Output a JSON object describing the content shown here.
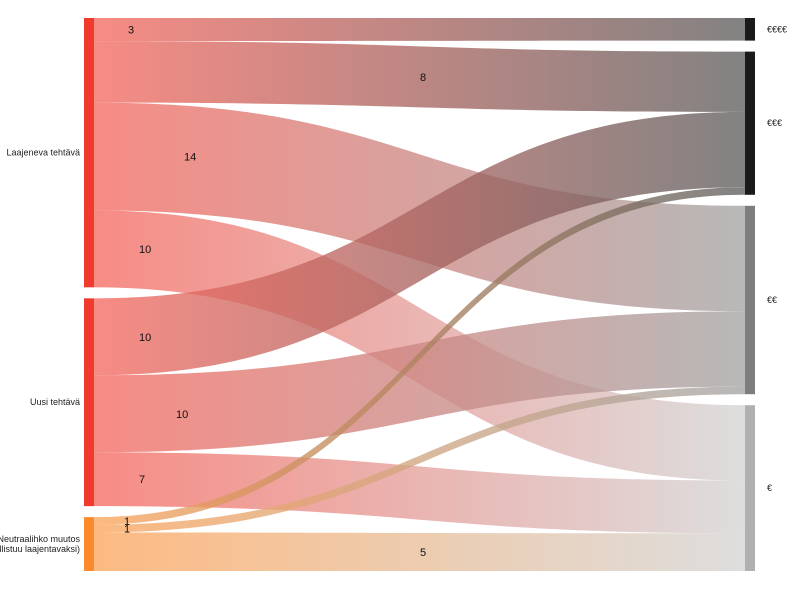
{
  "chart_data": {
    "type": "sankey",
    "title": "",
    "sources": [
      {
        "id": "laajeneva",
        "label": "Laajeneva tehtävä",
        "color": "#f03a2e"
      },
      {
        "id": "uusi",
        "label": "Uusi tehtävä",
        "color": "#f03a2e"
      },
      {
        "id": "neutraali",
        "label_lines": [
          "Neutraalihko muutos",
          "(kallistuu laajentavaksi)"
        ],
        "color": "#fb8a2a"
      }
    ],
    "targets": [
      {
        "id": "t4",
        "label": "€€€€",
        "color": "#1a1a1a"
      },
      {
        "id": "t3",
        "label": "€€€",
        "color": "#1a1a1a"
      },
      {
        "id": "t2",
        "label": "€€",
        "color": "#7d7d7d"
      },
      {
        "id": "t1",
        "label": "€",
        "color": "#b0b0b0"
      }
    ],
    "flows": [
      {
        "source": "laajeneva",
        "target": "t4",
        "value": 3,
        "label": "3"
      },
      {
        "source": "laajeneva",
        "target": "t3",
        "value": 8,
        "label": "8"
      },
      {
        "source": "laajeneva",
        "target": "t2",
        "value": 14,
        "label": "14"
      },
      {
        "source": "laajeneva",
        "target": "t1",
        "value": 10,
        "label": "10"
      },
      {
        "source": "uusi",
        "target": "t3",
        "value": 10,
        "label": "10"
      },
      {
        "source": "uusi",
        "target": "t2",
        "value": 10,
        "label": "10"
      },
      {
        "source": "uusi",
        "target": "t1",
        "value": 7,
        "label": "7"
      },
      {
        "source": "neutraali",
        "target": "t3",
        "value": 1,
        "label": "1"
      },
      {
        "source": "neutraali",
        "target": "t2",
        "value": 1,
        "label": "1"
      },
      {
        "source": "neutraali",
        "target": "t1",
        "value": 5,
        "label": "5"
      }
    ]
  }
}
